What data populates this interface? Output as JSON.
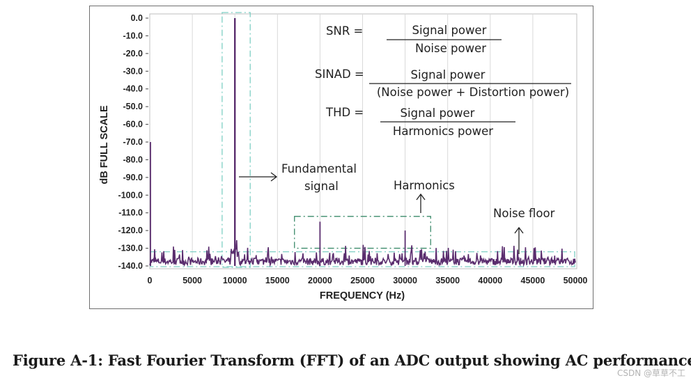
{
  "chart_data": {
    "type": "line",
    "xlabel": "FREQUENCY (Hz)",
    "ylabel": "dB FULL SCALE",
    "xlim": [
      0,
      50000
    ],
    "ylim": [
      -140,
      0
    ],
    "x_ticks": [
      "0",
      "5000",
      "10000",
      "15000",
      "20000",
      "25000",
      "30000",
      "35000",
      "40000",
      "45000",
      "50000"
    ],
    "y_ticks": [
      "0.0",
      "-10.0",
      "-20.0",
      "-30.0",
      "-40.0",
      "-50.0",
      "-60.0",
      "-70.0",
      "-80.0",
      "-90.0",
      "-100.0",
      "-110.0",
      "-120.0",
      "-130.0",
      "-140.0"
    ],
    "series": [
      {
        "color": "#5a2d6e",
        "peaks": [
          {
            "x": 0,
            "y": -70
          },
          {
            "x": 10000,
            "y": 0
          },
          {
            "x": 20000,
            "y": -115
          },
          {
            "x": 30000,
            "y": -120
          }
        ],
        "noise_floor_db": -138
      }
    ],
    "annotations": {
      "snr_label": "SNR =",
      "snr_num": "Signal power",
      "snr_den": "Noise power",
      "sinad_label": "SINAD =",
      "sinad_num": "Signal power",
      "sinad_den": "(Noise power + Distortion power)",
      "thd_label": "THD =",
      "thd_num": "Signal power",
      "thd_den": "Harmonics power",
      "fundamental_line1": "Fundamental",
      "fundamental_line2": "signal",
      "harmonics": "Harmonics",
      "noise_floor": "Noise floor"
    },
    "colors": {
      "trace": "#5a2d6e",
      "highlight_box": "#7ecfc4",
      "harmonics_box": "#3a8a6a",
      "grid": "#d9d9d9"
    }
  },
  "caption": "Figure A-1: Fast Fourier Transform (FFT) of an ADC output showing AC performance",
  "watermark": "CSDN @草草不工"
}
